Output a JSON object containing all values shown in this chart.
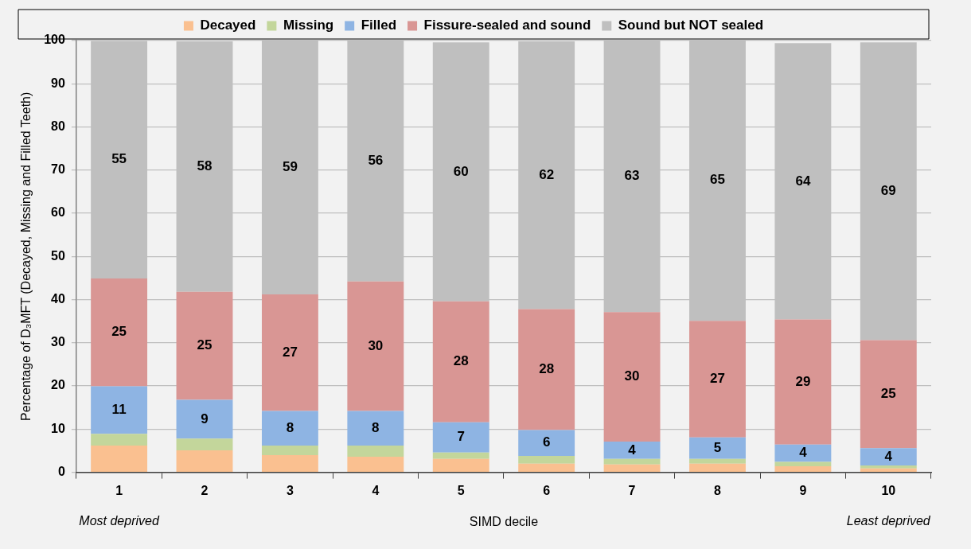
{
  "chart_data": {
    "type": "bar",
    "stacked": true,
    "xlabel": "SIMD decile",
    "ylabel": "Percentage of D₃MFT (Decayed, Missing and Filled Teeth)",
    "categories": [
      "1",
      "2",
      "3",
      "4",
      "5",
      "6",
      "7",
      "8",
      "9",
      "10"
    ],
    "series": [
      {
        "name": "Decayed",
        "color": "#fac090",
        "values": [
          6.2,
          5.1,
          4.0,
          3.6,
          3.1,
          2.0,
          1.8,
          2.0,
          1.4,
          0.9
        ]
      },
      {
        "name": "Missing",
        "color": "#c3d69b",
        "values": [
          2.7,
          2.7,
          2.2,
          2.6,
          1.5,
          1.8,
          1.3,
          1.1,
          1.0,
          0.7
        ]
      },
      {
        "name": "Filled",
        "color": "#8eb4e3",
        "values": [
          11,
          9,
          8,
          8,
          7,
          6,
          4,
          5,
          4,
          4
        ],
        "value_labels": [
          "11",
          "9",
          "8",
          "8",
          "7",
          "6",
          "4",
          "5",
          "4",
          "4"
        ]
      },
      {
        "name": "Fissure-sealed and sound",
        "color": "#d99694",
        "values": [
          25,
          25,
          27,
          30,
          28,
          28,
          30,
          27,
          29,
          25
        ],
        "value_labels": [
          "25",
          "25",
          "27",
          "30",
          "28",
          "28",
          "30",
          "27",
          "29",
          "25"
        ]
      },
      {
        "name": "Sound but NOT sealed",
        "color": "#bfbfbf",
        "values": [
          55,
          58,
          59,
          56,
          60,
          62,
          63,
          65,
          64,
          69
        ],
        "value_labels": [
          "55",
          "58",
          "59",
          "56",
          "60",
          "62",
          "63",
          "65",
          "64",
          "69"
        ]
      }
    ],
    "ylim": [
      0,
      100
    ],
    "yticks": [
      0,
      10,
      20,
      30,
      40,
      50,
      60,
      70,
      80,
      90,
      100
    ],
    "grid": "y",
    "legend": "top",
    "annotations": [
      "Most deprived",
      "Least deprived"
    ]
  }
}
